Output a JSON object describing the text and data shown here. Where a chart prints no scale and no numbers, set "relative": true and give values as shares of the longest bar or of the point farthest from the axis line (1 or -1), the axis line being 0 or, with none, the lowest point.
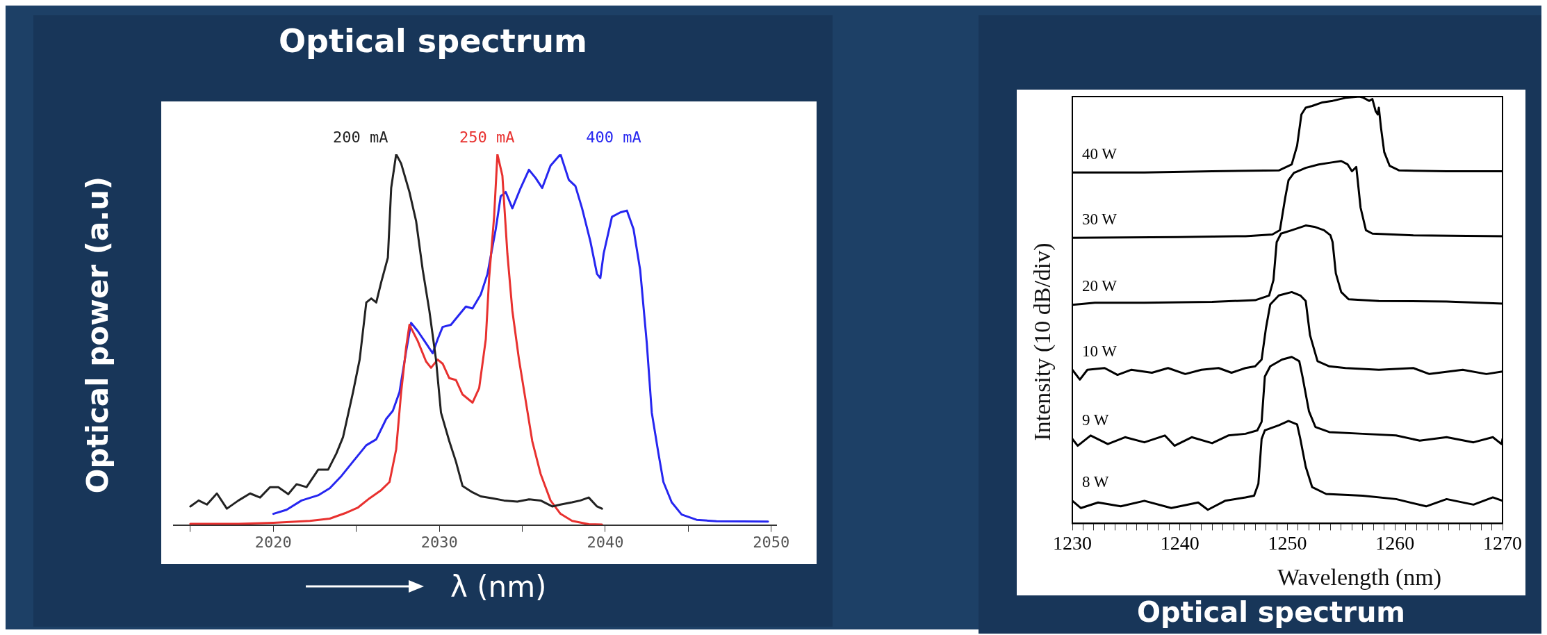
{
  "chart_data": [
    {
      "type": "line",
      "title": "Optical spectrum",
      "xlabel": "λ (nm)",
      "ylabel": "Optical power (a.u)",
      "relative": true,
      "marker": "none",
      "xlim": [
        2014,
        2050.3
      ],
      "xticks": [
        {
          "value": 2015,
          "label": null
        },
        2020,
        {
          "value": 2025,
          "label": null
        },
        2030,
        {
          "value": 2035,
          "label": null
        },
        2040,
        {
          "value": 2045,
          "label": null
        },
        2050
      ],
      "series": [
        {
          "name": "200 mA",
          "color": "#222222",
          "x": [
            2015.0,
            2015.5,
            2016.0,
            2016.6,
            2017.2,
            2017.9,
            2018.6,
            2019.2,
            2019.8,
            2020.3,
            2020.9,
            2021.4,
            2022.0,
            2022.7,
            2023.3,
            2023.8,
            2024.2,
            2024.8,
            2025.2,
            2025.6,
            2025.9,
            2026.2,
            2026.5,
            2026.9,
            2027.1,
            2027.4,
            2027.7,
            2028.2,
            2028.6,
            2029.0,
            2029.4,
            2029.8,
            2030.1,
            2030.6,
            2031.0,
            2031.4,
            2032.0,
            2032.5,
            2033.2,
            2033.9,
            2034.7,
            2035.4,
            2036.1,
            2036.8,
            2037.3,
            2038.0,
            2038.5,
            2039.0,
            2039.5,
            2039.8
          ],
          "values": [
            0.05,
            0.066,
            0.055,
            0.085,
            0.044,
            0.066,
            0.085,
            0.074,
            0.102,
            0.102,
            0.083,
            0.11,
            0.102,
            0.149,
            0.149,
            0.193,
            0.237,
            0.358,
            0.446,
            0.6,
            0.611,
            0.6,
            0.655,
            0.721,
            0.909,
            1,
            0.975,
            0.898,
            0.82,
            0.688,
            0.578,
            0.446,
            0.303,
            0.226,
            0.171,
            0.105,
            0.088,
            0.077,
            0.072,
            0.066,
            0.063,
            0.069,
            0.066,
            0.05,
            0.055,
            0.061,
            0.066,
            0.074,
            0.05,
            0.044
          ]
        },
        {
          "name": "250 mA",
          "color": "#e8312f",
          "x": [
            2015.0,
            2017.9,
            2020.0,
            2022.2,
            2023.4,
            2024.4,
            2025.1,
            2025.8,
            2026.5,
            2027.0,
            2027.4,
            2027.7,
            2028.0,
            2028.2,
            2028.7,
            2029.2,
            2029.5,
            2029.9,
            2030.2,
            2030.6,
            2031.0,
            2031.4,
            2032.0,
            2032.4,
            2032.8,
            2033.0,
            2033.3,
            2033.5,
            2033.8,
            2034.1,
            2034.4,
            2034.8,
            2035.2,
            2035.6,
            2036.1,
            2036.7,
            2037.3,
            2038.0,
            2039.0,
            2039.8
          ],
          "values": [
            0.003,
            0.003,
            0.006,
            0.011,
            0.017,
            0.033,
            0.047,
            0.072,
            0.094,
            0.116,
            0.204,
            0.358,
            0.479,
            0.54,
            0.496,
            0.441,
            0.424,
            0.446,
            0.435,
            0.396,
            0.391,
            0.352,
            0.33,
            0.369,
            0.501,
            0.666,
            0.831,
            1,
            0.942,
            0.732,
            0.578,
            0.446,
            0.336,
            0.226,
            0.138,
            0.066,
            0.03,
            0.011,
            0.002,
            0.001
          ]
        },
        {
          "name": "400 mA",
          "color": "#2626f0",
          "x": [
            2020.0,
            2020.8,
            2021.7,
            2022.7,
            2023.4,
            2024.1,
            2024.8,
            2025.6,
            2026.2,
            2026.8,
            2027.2,
            2027.6,
            2028.0,
            2028.3,
            2028.7,
            2029.2,
            2029.6,
            2029.9,
            2030.2,
            2030.7,
            2031.1,
            2031.6,
            2032.0,
            2032.5,
            2032.9,
            2033.4,
            2033.7,
            2034.0,
            2034.4,
            2034.9,
            2035.4,
            2035.8,
            2036.2,
            2036.7,
            2037.3,
            2037.8,
            2038.2,
            2038.6,
            2039.1,
            2039.5,
            2039.7,
            2039.9,
            2040.4,
            2040.9,
            2041.3,
            2041.7,
            2042.1,
            2042.5,
            2042.8,
            2043.2,
            2043.5,
            2044.0,
            2044.6,
            2045.5,
            2046.7,
            2049.8
          ],
          "values": [
            0.03,
            0.041,
            0.066,
            0.08,
            0.099,
            0.132,
            0.171,
            0.215,
            0.231,
            0.286,
            0.308,
            0.358,
            0.468,
            0.545,
            0.523,
            0.49,
            0.463,
            0.501,
            0.534,
            0.54,
            0.562,
            0.589,
            0.584,
            0.622,
            0.677,
            0.798,
            0.887,
            0.898,
            0.854,
            0.909,
            0.958,
            0.936,
            0.909,
            0.969,
            1,
            0.931,
            0.914,
            0.854,
            0.765,
            0.677,
            0.666,
            0.732,
            0.831,
            0.843,
            0.848,
            0.798,
            0.688,
            0.49,
            0.303,
            0.193,
            0.116,
            0.061,
            0.028,
            0.014,
            0.01,
            0.009
          ]
        }
      ]
    },
    {
      "type": "line",
      "title": "Optical spectrum",
      "xlabel": "Wavelength (nm)",
      "ylabel": "Intensity (10 dB/div)",
      "relative": true,
      "marker": "none",
      "xlim": [
        1230,
        1270
      ],
      "xticks": [
        1230,
        {
          "value": 1231,
          "label": null
        },
        {
          "value": 1232,
          "label": null
        },
        {
          "value": 1233,
          "label": null
        },
        {
          "value": 1234,
          "label": null
        },
        {
          "value": 1235,
          "label": null
        },
        {
          "value": 1236,
          "label": null
        },
        {
          "value": 1237,
          "label": null
        },
        {
          "value": 1238,
          "label": null
        },
        {
          "value": 1239,
          "label": null
        },
        1240,
        {
          "value": 1241,
          "label": null
        },
        {
          "value": 1242,
          "label": null
        },
        {
          "value": 1243,
          "label": null
        },
        {
          "value": 1244,
          "label": null
        },
        {
          "value": 1245,
          "label": null
        },
        {
          "value": 1246,
          "label": null
        },
        {
          "value": 1247,
          "label": null
        },
        {
          "value": 1248,
          "label": null
        },
        {
          "value": 1249,
          "label": null
        },
        1250,
        {
          "value": 1251,
          "label": null
        },
        {
          "value": 1252,
          "label": null
        },
        {
          "value": 1253,
          "label": null
        },
        {
          "value": 1254,
          "label": null
        },
        {
          "value": 1255,
          "label": null
        },
        {
          "value": 1256,
          "label": null
        },
        {
          "value": 1257,
          "label": null
        },
        {
          "value": 1258,
          "label": null
        },
        {
          "value": 1259,
          "label": null
        },
        1260,
        {
          "value": 1261,
          "label": null
        },
        {
          "value": 1262,
          "label": null
        },
        {
          "value": 1263,
          "label": null
        },
        {
          "value": 1264,
          "label": null
        },
        {
          "value": 1265,
          "label": null
        },
        {
          "value": 1266,
          "label": null
        },
        {
          "value": 1267,
          "label": null
        },
        {
          "value": 1268,
          "label": null
        },
        {
          "value": 1269,
          "label": null
        },
        1270
      ],
      "series": [
        {
          "name": "40 W",
          "color": "#000000",
          "x": [
            1230,
            1236.7,
            1243.0,
            1249.2,
            1250.4,
            1250.9,
            1251.3,
            1251.7,
            1252.3,
            1253.2,
            1254.2,
            1255.4,
            1256.7,
            1257.0,
            1257.6,
            1257.9,
            1258.2,
            1258.4,
            1258.5,
            1258.7,
            1259.0,
            1259.5,
            1260.4,
            1264.8,
            1270
          ],
          "values": [
            0.822,
            0.822,
            0.825,
            0.827,
            0.841,
            0.885,
            0.958,
            0.974,
            0.978,
            0.986,
            0.99,
            0.997,
            1,
            0.998,
            0.99,
            0.994,
            0.966,
            0.958,
            0.974,
            0.927,
            0.87,
            0.838,
            0.827,
            0.825,
            0.825
          ]
        },
        {
          "name": "30 W",
          "color": "#000000",
          "x": [
            1230,
            1239.8,
            1246.1,
            1248.6,
            1249.3,
            1249.8,
            1250.1,
            1250.6,
            1251.7,
            1252.9,
            1254.2,
            1255.0,
            1255.6,
            1256.0,
            1256.4,
            1256.5,
            1256.8,
            1257.3,
            1257.9,
            1261.7,
            1270
          ],
          "values": [
            0.669,
            0.671,
            0.673,
            0.677,
            0.687,
            0.764,
            0.804,
            0.821,
            0.833,
            0.841,
            0.846,
            0.849,
            0.841,
            0.825,
            0.835,
            0.812,
            0.74,
            0.687,
            0.679,
            0.675,
            0.673
          ]
        },
        {
          "name": "20 W",
          "color": "#000000",
          "x": [
            1230,
            1232.1,
            1236.7,
            1243.0,
            1247.0,
            1248.3,
            1248.7,
            1249.0,
            1249.4,
            1250.4,
            1251.7,
            1252.5,
            1253.4,
            1254.0,
            1254.2,
            1254.5,
            1255.0,
            1255.7,
            1258.5,
            1264.8,
            1270
          ],
          "values": [
            0.512,
            0.517,
            0.517,
            0.519,
            0.523,
            0.534,
            0.57,
            0.659,
            0.679,
            0.687,
            0.698,
            0.695,
            0.687,
            0.675,
            0.659,
            0.586,
            0.542,
            0.525,
            0.521,
            0.52,
            0.515
          ]
        },
        {
          "name": "10 W",
          "color": "#000000",
          "x": [
            1230,
            1230.7,
            1231.4,
            1233.0,
            1234.2,
            1235.5,
            1237.4,
            1238.9,
            1240.5,
            1242.0,
            1243.6,
            1244.8,
            1246.1,
            1247.0,
            1247.6,
            1248.0,
            1248.4,
            1249.2,
            1250.4,
            1251.2,
            1251.7,
            1252.1,
            1252.8,
            1253.9,
            1255.4,
            1258.5,
            1261.7,
            1263.2,
            1266.3,
            1268.5,
            1270
          ],
          "values": [
            0.36,
            0.337,
            0.36,
            0.364,
            0.348,
            0.36,
            0.353,
            0.364,
            0.35,
            0.36,
            0.364,
            0.353,
            0.364,
            0.368,
            0.384,
            0.457,
            0.513,
            0.534,
            0.542,
            0.534,
            0.521,
            0.441,
            0.38,
            0.368,
            0.364,
            0.36,
            0.364,
            0.35,
            0.36,
            0.35,
            0.356
          ]
        },
        {
          "name": "9 W",
          "color": "#000000",
          "x": [
            1230,
            1230.5,
            1231.7,
            1233.3,
            1234.9,
            1236.7,
            1238.6,
            1239.5,
            1241.1,
            1243.0,
            1244.5,
            1246.1,
            1247.2,
            1247.6,
            1247.9,
            1248.4,
            1249.5,
            1250.4,
            1251.1,
            1251.4,
            1252.0,
            1252.6,
            1253.9,
            1257.0,
            1260.1,
            1262.3,
            1264.8,
            1267.3,
            1269.1,
            1269.9,
            1270
          ],
          "values": [
            0.198,
            0.182,
            0.206,
            0.186,
            0.202,
            0.19,
            0.206,
            0.182,
            0.202,
            0.188,
            0.206,
            0.21,
            0.218,
            0.238,
            0.344,
            0.368,
            0.384,
            0.39,
            0.38,
            0.344,
            0.263,
            0.226,
            0.214,
            0.21,
            0.206,
            0.194,
            0.202,
            0.19,
            0.202,
            0.186,
            0.198
          ]
        },
        {
          "name": "8 W",
          "color": "#000000",
          "x": [
            1230,
            1230.8,
            1232.4,
            1234.5,
            1236.7,
            1239.2,
            1241.7,
            1242.6,
            1244.2,
            1246.1,
            1246.9,
            1247.3,
            1247.6,
            1247.9,
            1249.2,
            1250.1,
            1250.9,
            1251.2,
            1251.7,
            1252.3,
            1253.6,
            1257.0,
            1260.1,
            1262.9,
            1264.8,
            1267.3,
            1269.1,
            1270
          ],
          "values": [
            0.053,
            0.036,
            0.049,
            0.04,
            0.053,
            0.036,
            0.049,
            0.032,
            0.053,
            0.061,
            0.065,
            0.093,
            0.198,
            0.218,
            0.23,
            0.24,
            0.232,
            0.198,
            0.133,
            0.085,
            0.069,
            0.065,
            0.057,
            0.04,
            0.057,
            0.044,
            0.061,
            0.053
          ]
        }
      ]
    }
  ]
}
